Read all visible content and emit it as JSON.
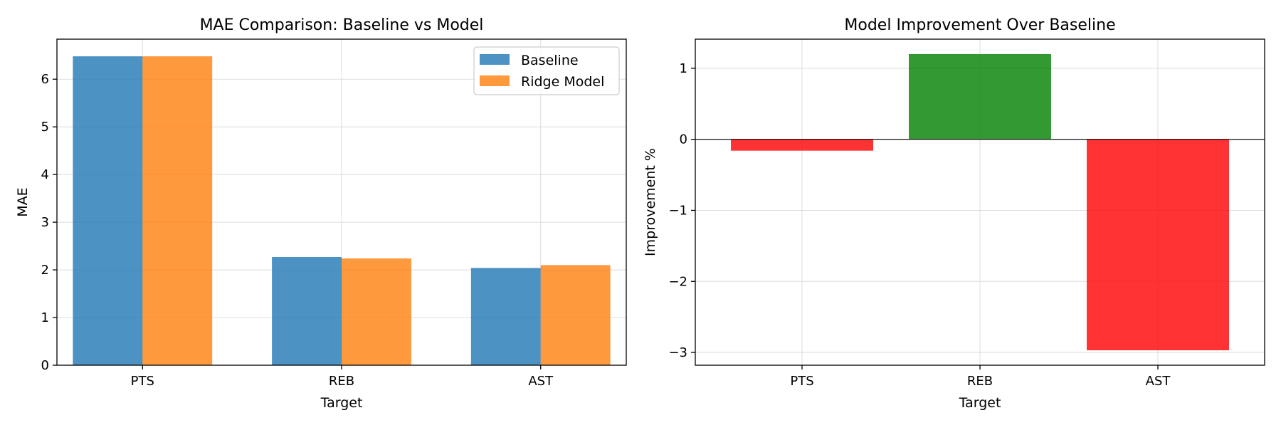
{
  "chart_data": [
    {
      "type": "bar",
      "title": "MAE Comparison: Baseline vs Model",
      "xlabel": "Target",
      "ylabel": "MAE",
      "categories": [
        "PTS",
        "REB",
        "AST"
      ],
      "series": [
        {
          "name": "Baseline",
          "color": "#1f77b4",
          "values": [
            6.48,
            2.27,
            2.04
          ]
        },
        {
          "name": "Ridge Model",
          "color": "#ff7f0e",
          "values": [
            6.48,
            2.24,
            2.1
          ]
        }
      ],
      "ylim": [
        0,
        6.84
      ],
      "yticks": [
        "0",
        "1",
        "2",
        "3",
        "4",
        "5",
        "6"
      ],
      "grid": true,
      "legend": "top-right"
    },
    {
      "type": "bar",
      "title": "Model Improvement Over Baseline",
      "xlabel": "Target",
      "ylabel": "Improvement %",
      "categories": [
        "PTS",
        "REB",
        "AST"
      ],
      "values": [
        -0.16,
        1.2,
        -2.97
      ],
      "colors": [
        "#ff0000",
        "#008000",
        "#ff0000"
      ],
      "ylim": [
        -3.18,
        1.41
      ],
      "yticks": [
        "1",
        "0",
        "−1",
        "−2",
        "−3"
      ],
      "ytick_values": [
        1,
        0,
        -1,
        -2,
        -3
      ],
      "zero_line": true,
      "grid": true
    }
  ]
}
